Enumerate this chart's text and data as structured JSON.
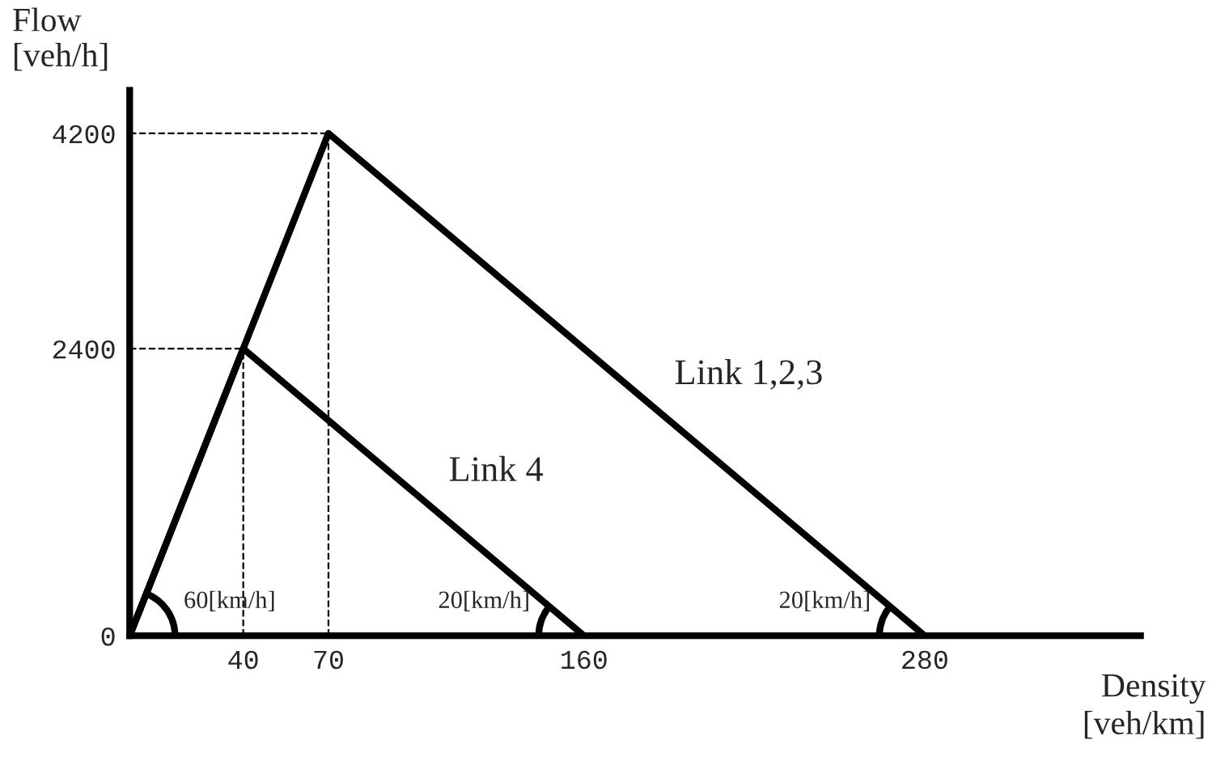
{
  "chart_data": {
    "type": "line",
    "ylabel": "Flow\n[veh/h]",
    "xlabel": "Density\n[veh/km]",
    "series": [
      {
        "name": "Link 1,2,3",
        "color": "#000000",
        "x": [
          0,
          70,
          280
        ],
        "values": [
          0,
          4200,
          0
        ]
      },
      {
        "name": "Link 4",
        "color": "#000000",
        "x": [
          0,
          40,
          160
        ],
        "values": [
          0,
          2400,
          0
        ]
      }
    ],
    "xlim": [
      0,
      356
    ],
    "ylim": [
      0,
      4560
    ],
    "xticks": [
      {
        "value": 0,
        "label": null
      },
      40,
      70,
      160,
      280
    ],
    "yticks": [
      0,
      2400,
      4200
    ],
    "ref_lines": [
      {
        "axis": "y",
        "value": 4200,
        "line_style": "dashed"
      },
      {
        "axis": "x",
        "value": 70,
        "line_style": "dashed"
      },
      {
        "axis": "y",
        "value": 2400,
        "line_style": "dashed"
      },
      {
        "axis": "x",
        "value": 40,
        "line_style": "dashed"
      }
    ],
    "annotations": [
      "60[km/h]",
      "20[km/h]",
      "20[km/h]"
    ],
    "grid": false,
    "legend": false,
    "marker": "none",
    "line_style": "solid"
  }
}
